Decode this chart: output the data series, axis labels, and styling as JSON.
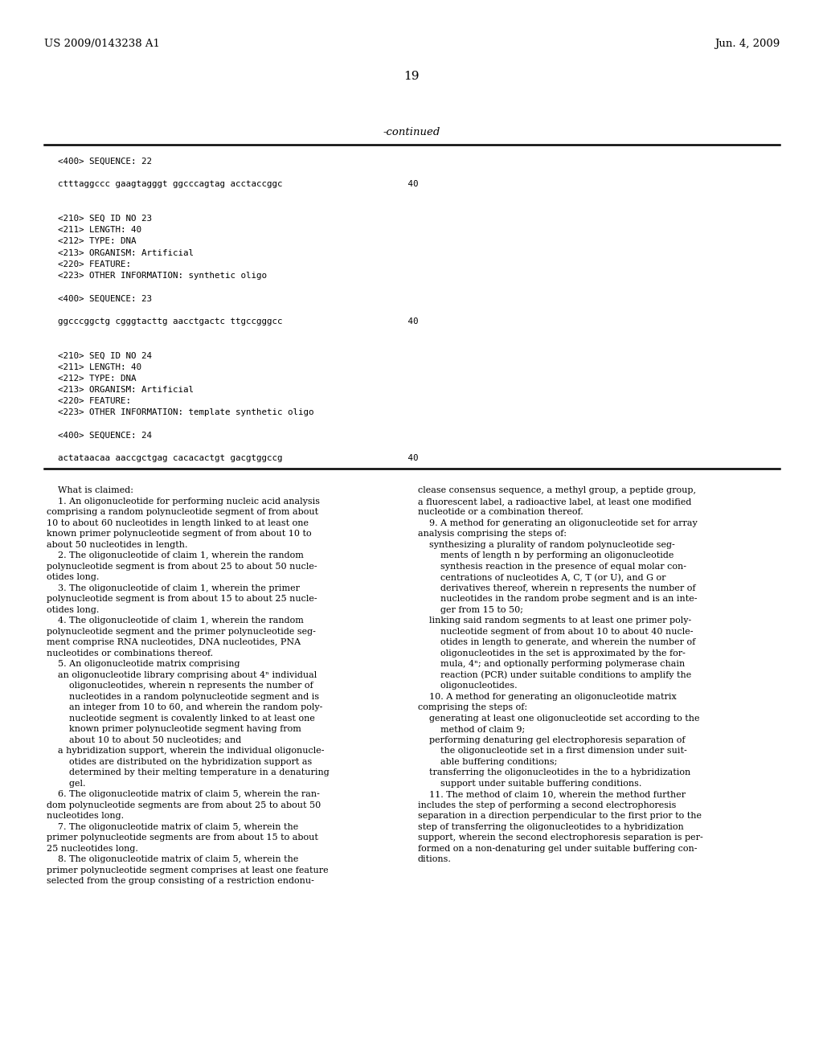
{
  "background_color": "#ffffff",
  "header_left": "US 2009/0143238 A1",
  "header_right": "Jun. 4, 2009",
  "page_number": "19",
  "continued_label": "-continued",
  "sequence_block": [
    "<400> SEQUENCE: 22",
    "",
    "ctttaggccc gaagtagggt ggcccagtag acctaccggc                        40",
    "",
    "",
    "<210> SEQ ID NO 23",
    "<211> LENGTH: 40",
    "<212> TYPE: DNA",
    "<213> ORGANISM: Artificial",
    "<220> FEATURE:",
    "<223> OTHER INFORMATION: synthetic oligo",
    "",
    "<400> SEQUENCE: 23",
    "",
    "ggcccggctg cgggtacttg aacctgactc ttgccgggcc                        40",
    "",
    "",
    "<210> SEQ ID NO 24",
    "<211> LENGTH: 40",
    "<212> TYPE: DNA",
    "<213> ORGANISM: Artificial",
    "<220> FEATURE:",
    "<223> OTHER INFORMATION: template synthetic oligo",
    "",
    "<400> SEQUENCE: 24",
    "",
    "actataacaa aaccgctgag cacacactgt gacgtggccg                        40"
  ],
  "claims_left": [
    "    What is claimed:",
    "    1. An oligonucleotide for performing nucleic acid analysis",
    "comprising a random polynucleotide segment of from about",
    "10 to about 60 nucleotides in length linked to at least one",
    "known primer polynucleotide segment of from about 10 to",
    "about 50 nucleotides in length.",
    "    2. The oligonucleotide of claim 1, wherein the random",
    "polynucleotide segment is from about 25 to about 50 nucle-",
    "otides long.",
    "    3. The oligonucleotide of claim 1, wherein the primer",
    "polynucleotide segment is from about 15 to about 25 nucle-",
    "otides long.",
    "    4. The oligonucleotide of claim 1, wherein the random",
    "polynucleotide segment and the primer polynucleotide seg-",
    "ment comprise RNA nucleotides, DNA nucleotides, PNA",
    "nucleotides or combinations thereof.",
    "    5. An oligonucleotide matrix comprising",
    "    an oligonucleotide library comprising about 4ⁿ individual",
    "        oligonucleotides, wherein n represents the number of",
    "        nucleotides in a random polynucleotide segment and is",
    "        an integer from 10 to 60, and wherein the random poly-",
    "        nucleotide segment is covalently linked to at least one",
    "        known primer polynucleotide segment having from",
    "        about 10 to about 50 nucleotides; and",
    "    a hybridization support, wherein the individual oligonucle-",
    "        otides are distributed on the hybridization support as",
    "        determined by their melting temperature in a denaturing",
    "        gel.",
    "    6. The oligonucleotide matrix of claim 5, wherein the ran-",
    "dom polynucleotide segments are from about 25 to about 50",
    "nucleotides long.",
    "    7. The oligonucleotide matrix of claim 5, wherein the",
    "primer polynucleotide segments are from about 15 to about",
    "25 nucleotides long.",
    "    8. The oligonucleotide matrix of claim 5, wherein the",
    "primer polynucleotide segment comprises at least one feature",
    "selected from the group consisting of a restriction endonu-"
  ],
  "claims_right": [
    "clease consensus sequence, a methyl group, a peptide group,",
    "a fluorescent label, a radioactive label, at least one modified",
    "nucleotide or a combination thereof.",
    "    9. A method for generating an oligonucleotide set for array",
    "analysis comprising the steps of:",
    "    synthesizing a plurality of random polynucleotide seg-",
    "        ments of length n by performing an oligonucleotide",
    "        synthesis reaction in the presence of equal molar con-",
    "        centrations of nucleotides A, C, T (or U), and G or",
    "        derivatives thereof, wherein n represents the number of",
    "        nucleotides in the random probe segment and is an inte-",
    "        ger from 15 to 50;",
    "    linking said random segments to at least one primer poly-",
    "        nucleotide segment of from about 10 to about 40 nucle-",
    "        otides in length to generate, and wherein the number of",
    "        oligonucleotides in the set is approximated by the for-",
    "        mula, 4ⁿ; and optionally performing polymerase chain",
    "        reaction (PCR) under suitable conditions to amplify the",
    "        oligonucleotides.",
    "    10. A method for generating an oligonucleotide matrix",
    "comprising the steps of:",
    "    generating at least one oligonucleotide set according to the",
    "        method of claim 9;",
    "    performing denaturing gel electrophoresis separation of",
    "        the oligonucleotide set in a first dimension under suit-",
    "        able buffering conditions;",
    "    transferring the oligonucleotides in the to a hybridization",
    "        support under suitable buffering conditions.",
    "    11. The method of claim 10, wherein the method further",
    "includes the step of performing a second electrophoresis",
    "separation in a direction perpendicular to the first prior to the",
    "step of transferring the oligonucleotides to a hybridization",
    "support, wherein the second electrophoresis separation is per-",
    "formed on a non-denaturing gel under suitable buffering con-",
    "ditions."
  ]
}
